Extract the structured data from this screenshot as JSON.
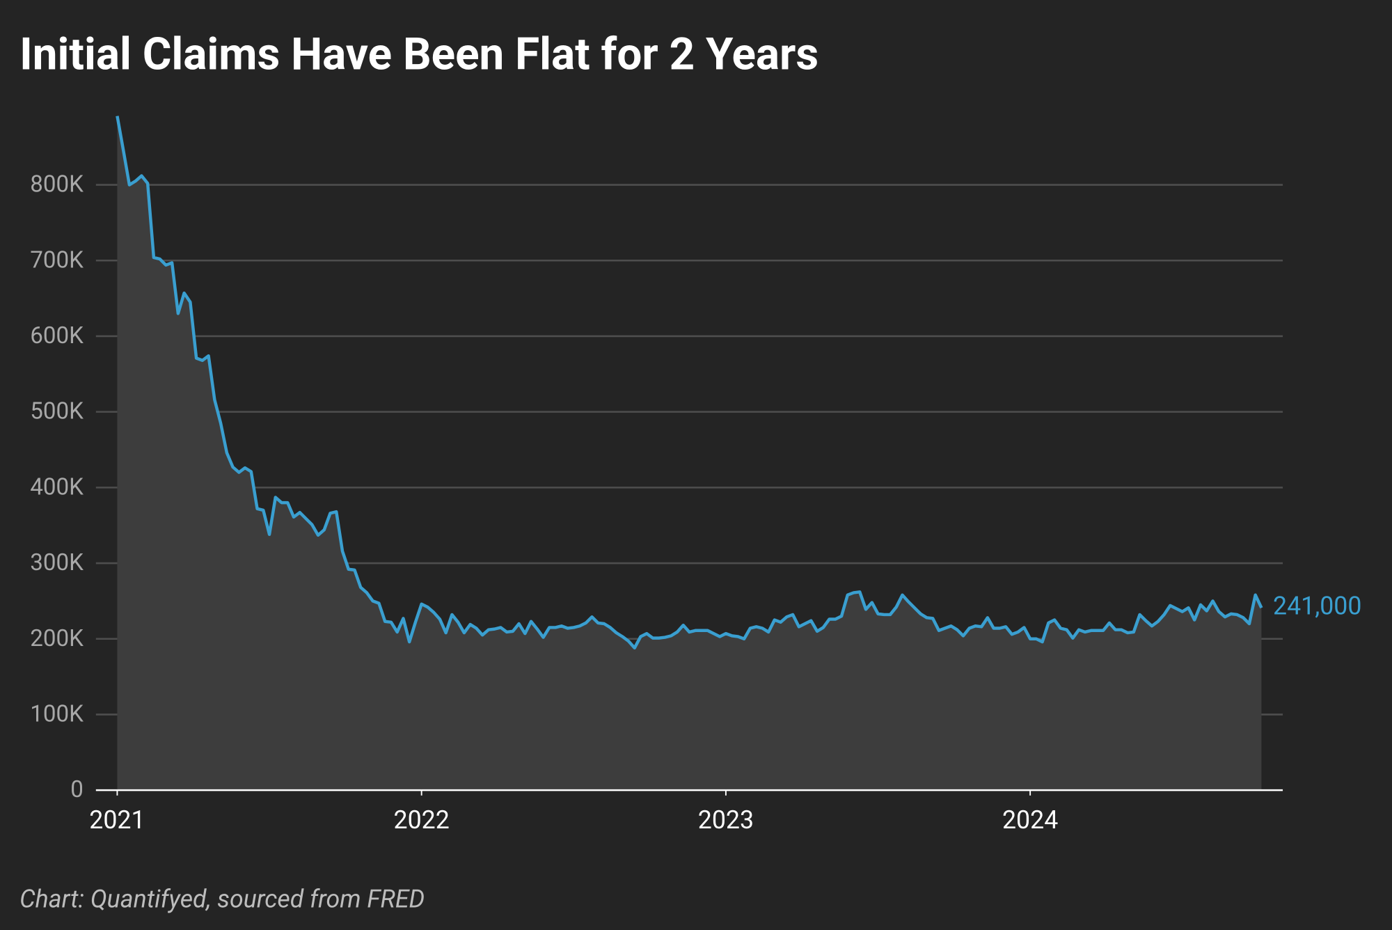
{
  "chart_data": {
    "type": "line",
    "title": "Initial Claims Have Been Flat for 2 Years",
    "source": "Chart: Quantifyed, sourced from FRED",
    "x": [
      2021,
      2021.02,
      2021.04,
      2021.06,
      2021.08,
      2021.1,
      2021.12,
      2021.14,
      2021.16,
      2021.18,
      2021.2,
      2021.22,
      2021.24,
      2021.26,
      2021.28,
      2021.3,
      2021.32,
      2021.34,
      2021.36,
      2021.38,
      2021.4,
      2021.42,
      2021.44,
      2021.46,
      2021.48,
      2021.5,
      2021.52,
      2021.54,
      2021.56,
      2021.58,
      2021.6,
      2021.62,
      2021.64,
      2021.66,
      2021.68,
      2021.7,
      2021.72,
      2021.74,
      2021.76,
      2021.78,
      2021.8,
      2021.82,
      2021.84,
      2021.86,
      2021.88,
      2021.9,
      2021.92,
      2021.94,
      2021.96,
      2021.98,
      2022,
      2022.02,
      2022.04,
      2022.06,
      2022.08,
      2022.1,
      2022.12,
      2022.14,
      2022.16,
      2022.18,
      2022.2,
      2022.22,
      2022.24,
      2022.26,
      2022.28,
      2022.3,
      2022.32,
      2022.34,
      2022.36,
      2022.38,
      2022.4,
      2022.42,
      2022.44,
      2022.46,
      2022.48,
      2022.5,
      2022.52,
      2022.54,
      2022.56,
      2022.58,
      2022.6,
      2022.62,
      2022.64,
      2022.66,
      2022.68,
      2022.7,
      2022.72,
      2022.74,
      2022.76,
      2022.78,
      2022.8,
      2022.82,
      2022.84,
      2022.86,
      2022.88,
      2022.9,
      2022.92,
      2022.94,
      2022.96,
      2022.98,
      2023,
      2023.02,
      2023.04,
      2023.06,
      2023.08,
      2023.1,
      2023.12,
      2023.14,
      2023.16,
      2023.18,
      2023.2,
      2023.22,
      2023.24,
      2023.26,
      2023.28,
      2023.3,
      2023.32,
      2023.34,
      2023.36,
      2023.38,
      2023.4,
      2023.42,
      2023.44,
      2023.46,
      2023.48,
      2023.5,
      2023.52,
      2023.54,
      2023.56,
      2023.58,
      2023.6,
      2023.62,
      2023.64,
      2023.66,
      2023.68,
      2023.7,
      2023.72,
      2023.74,
      2023.76,
      2023.78,
      2023.8,
      2023.82,
      2023.84,
      2023.86,
      2023.88,
      2023.9,
      2023.92,
      2023.94,
      2023.96,
      2023.98,
      2024,
      2024.02,
      2024.04,
      2024.06,
      2024.08,
      2024.1,
      2024.12,
      2024.14,
      2024.16,
      2024.18,
      2024.2,
      2024.22,
      2024.24,
      2024.26,
      2024.28,
      2024.3,
      2024.32,
      2024.34,
      2024.36,
      2024.38,
      2024.4,
      2024.42,
      2024.44,
      2024.46,
      2024.48,
      2024.5,
      2024.52,
      2024.54,
      2024.56,
      2024.58,
      2024.6,
      2024.62,
      2024.64,
      2024.66,
      2024.68,
      2024.7,
      2024.72,
      2024.74,
      2024.76
    ],
    "series": [
      {
        "color": "#3a9fd0",
        "values": [
          891000,
          846000,
          800000,
          805000,
          812000,
          802000,
          704000,
          702000,
          694000,
          697000,
          630000,
          657000,
          645000,
          571000,
          568000,
          574000,
          516000,
          485000,
          446000,
          427000,
          420000,
          426000,
          421000,
          372000,
          370000,
          338000,
          387000,
          380000,
          380000,
          361000,
          367000,
          359000,
          351000,
          337000,
          344000,
          366000,
          368000,
          316000,
          292000,
          291000,
          268000,
          261000,
          250000,
          247000,
          223000,
          222000,
          209000,
          227000,
          196000,
          222000,
          246000,
          242000,
          235000,
          226000,
          208000,
          232000,
          222000,
          208000,
          219000,
          214000,
          205000,
          212000,
          213000,
          215000,
          209000,
          210000,
          220000,
          207000,
          223000,
          213000,
          202000,
          215000,
          215000,
          217000,
          214000,
          215000,
          217000,
          221000,
          229000,
          221000,
          220000,
          215000,
          208000,
          203000,
          197000,
          188000,
          203000,
          207000,
          201000,
          201000,
          202000,
          204000,
          209000,
          218000,
          209000,
          211000,
          211000,
          211000,
          207000,
          203000,
          207000,
          204000,
          203000,
          200000,
          214000,
          216000,
          214000,
          209000,
          225000,
          222000,
          229000,
          232000,
          216000,
          220000,
          224000,
          210000,
          215000,
          226000,
          226000,
          230000,
          258000,
          261000,
          262000,
          239000,
          248000,
          233000,
          232000,
          232000,
          242000,
          258000,
          249000,
          241000,
          233000,
          228000,
          227000,
          211000,
          214000,
          217000,
          212000,
          204000,
          214000,
          217000,
          216000,
          228000,
          214000,
          214000,
          216000,
          206000,
          209000,
          215000,
          200000,
          200000,
          196000,
          221000,
          225000,
          214000,
          212000,
          201000,
          212000,
          209000,
          211000,
          211000,
          211000,
          221000,
          212000,
          212000,
          208000,
          209000,
          232000,
          224000,
          217000,
          223000,
          232000,
          244000,
          240000,
          236000,
          241000,
          225000,
          245000,
          237000,
          250000,
          236000,
          229000,
          233000,
          232000,
          228000,
          220000,
          258000,
          241000
        ],
        "last_value_label": "241,000"
      }
    ],
    "xlim": [
      2020.93,
      2024.83
    ],
    "xticks": [
      2021,
      2022,
      2023,
      2024
    ],
    "ylim": [
      0,
      900000
    ],
    "yticks": [
      0,
      {
        "value": 100000,
        "label": "100K"
      },
      {
        "value": 200000,
        "label": "200K"
      },
      {
        "value": 300000,
        "label": "300K"
      },
      {
        "value": 400000,
        "label": "400K"
      },
      {
        "value": 500000,
        "label": "500K"
      },
      {
        "value": 600000,
        "label": "600K"
      },
      {
        "value": 700000,
        "label": "700K"
      },
      {
        "value": 800000,
        "label": "800K"
      }
    ],
    "grid": true
  }
}
